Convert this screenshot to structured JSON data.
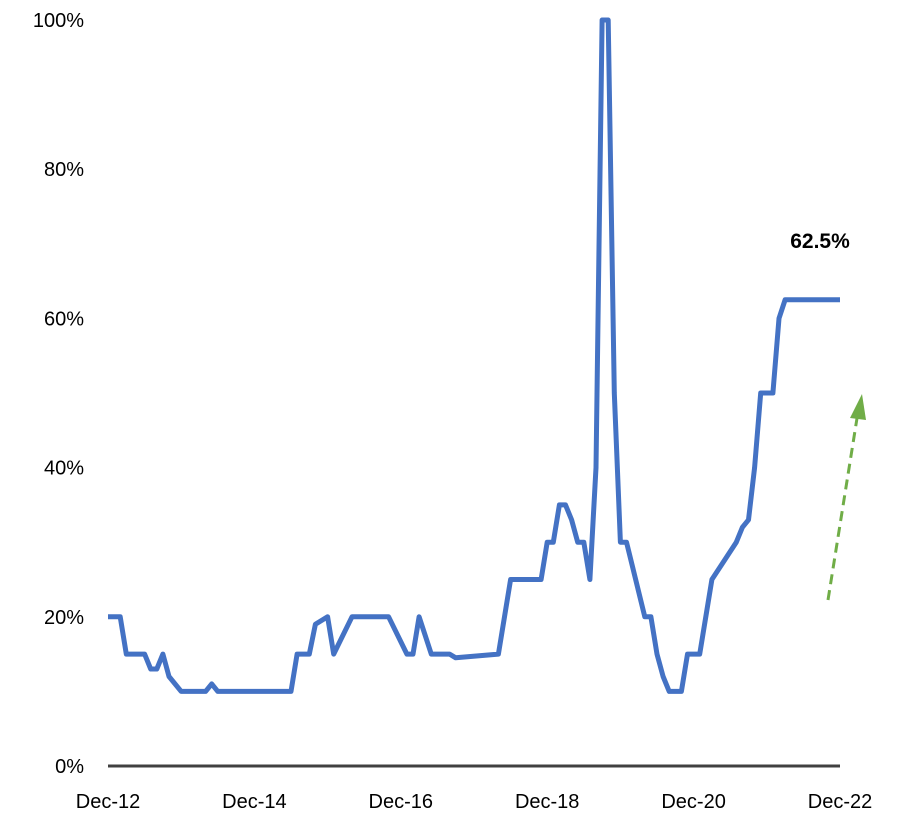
{
  "chart_data": {
    "type": "line",
    "title": "",
    "xlabel": "",
    "ylabel": "",
    "ylim": [
      0,
      100
    ],
    "y_unit": "%",
    "y_ticks": [
      "0%",
      "20%",
      "40%",
      "60%",
      "80%",
      "100%"
    ],
    "x_ticks": [
      "Dec-12",
      "Dec-14",
      "Dec-16",
      "Dec-18",
      "Dec-20",
      "Dec-22"
    ],
    "grid": false,
    "legend": "none",
    "series": [
      {
        "color": "#4472C4",
        "x": [
          "2012-12",
          "2013-02",
          "2013-03",
          "2013-06",
          "2013-07",
          "2013-08",
          "2013-09",
          "2013-10",
          "2013-12",
          "2014-04",
          "2014-05",
          "2014-06",
          "2015-06",
          "2015-07",
          "2015-09",
          "2015-10",
          "2015-12",
          "2016-01",
          "2016-04",
          "2016-09",
          "2016-10",
          "2017-01",
          "2017-02",
          "2017-03",
          "2017-05",
          "2017-08",
          "2017-09",
          "2018-04",
          "2018-05",
          "2018-06",
          "2018-11",
          "2018-12",
          "2019-01",
          "2019-02",
          "2019-03",
          "2019-04",
          "2019-05",
          "2019-06",
          "2019-07",
          "2019-08",
          "2019-09",
          "2019-10",
          "2019-11",
          "2019-12",
          "2020-01",
          "2020-04",
          "2020-05",
          "2020-06",
          "2020-07",
          "2020-08",
          "2020-09",
          "2020-10",
          "2020-11",
          "2020-12",
          "2021-01",
          "2021-02",
          "2021-03",
          "2021-07",
          "2021-08",
          "2021-09",
          "2021-10",
          "2021-11",
          "2021-12",
          "2022-01",
          "2022-02",
          "2022-03",
          "2022-04",
          "2022-05",
          "2022-06",
          "2022-07",
          "2022-08",
          "2022-09",
          "2022-10",
          "2022-11",
          "2022-12"
        ],
        "values": [
          20,
          20,
          15,
          15,
          13,
          13,
          15,
          12,
          10,
          10,
          11,
          10,
          10,
          15,
          15,
          19,
          20,
          15,
          20,
          20,
          20,
          15,
          15,
          20,
          15,
          15,
          14.5,
          15,
          20,
          25,
          25,
          30,
          30,
          35,
          35,
          33,
          30,
          30,
          25,
          40,
          100,
          100,
          50,
          30,
          30,
          20,
          20,
          15,
          12,
          10,
          10,
          10,
          15,
          15,
          15,
          20,
          25,
          30,
          32,
          33,
          40,
          50,
          50,
          50,
          60,
          62.5,
          62.5,
          62.5,
          62.5,
          62.5,
          62.5,
          62.5,
          62.5,
          62.5,
          62.5
        ]
      }
    ],
    "annotations": [
      {
        "text": "62.5%"
      }
    ],
    "trend_arrow_color": "#70AD47"
  }
}
